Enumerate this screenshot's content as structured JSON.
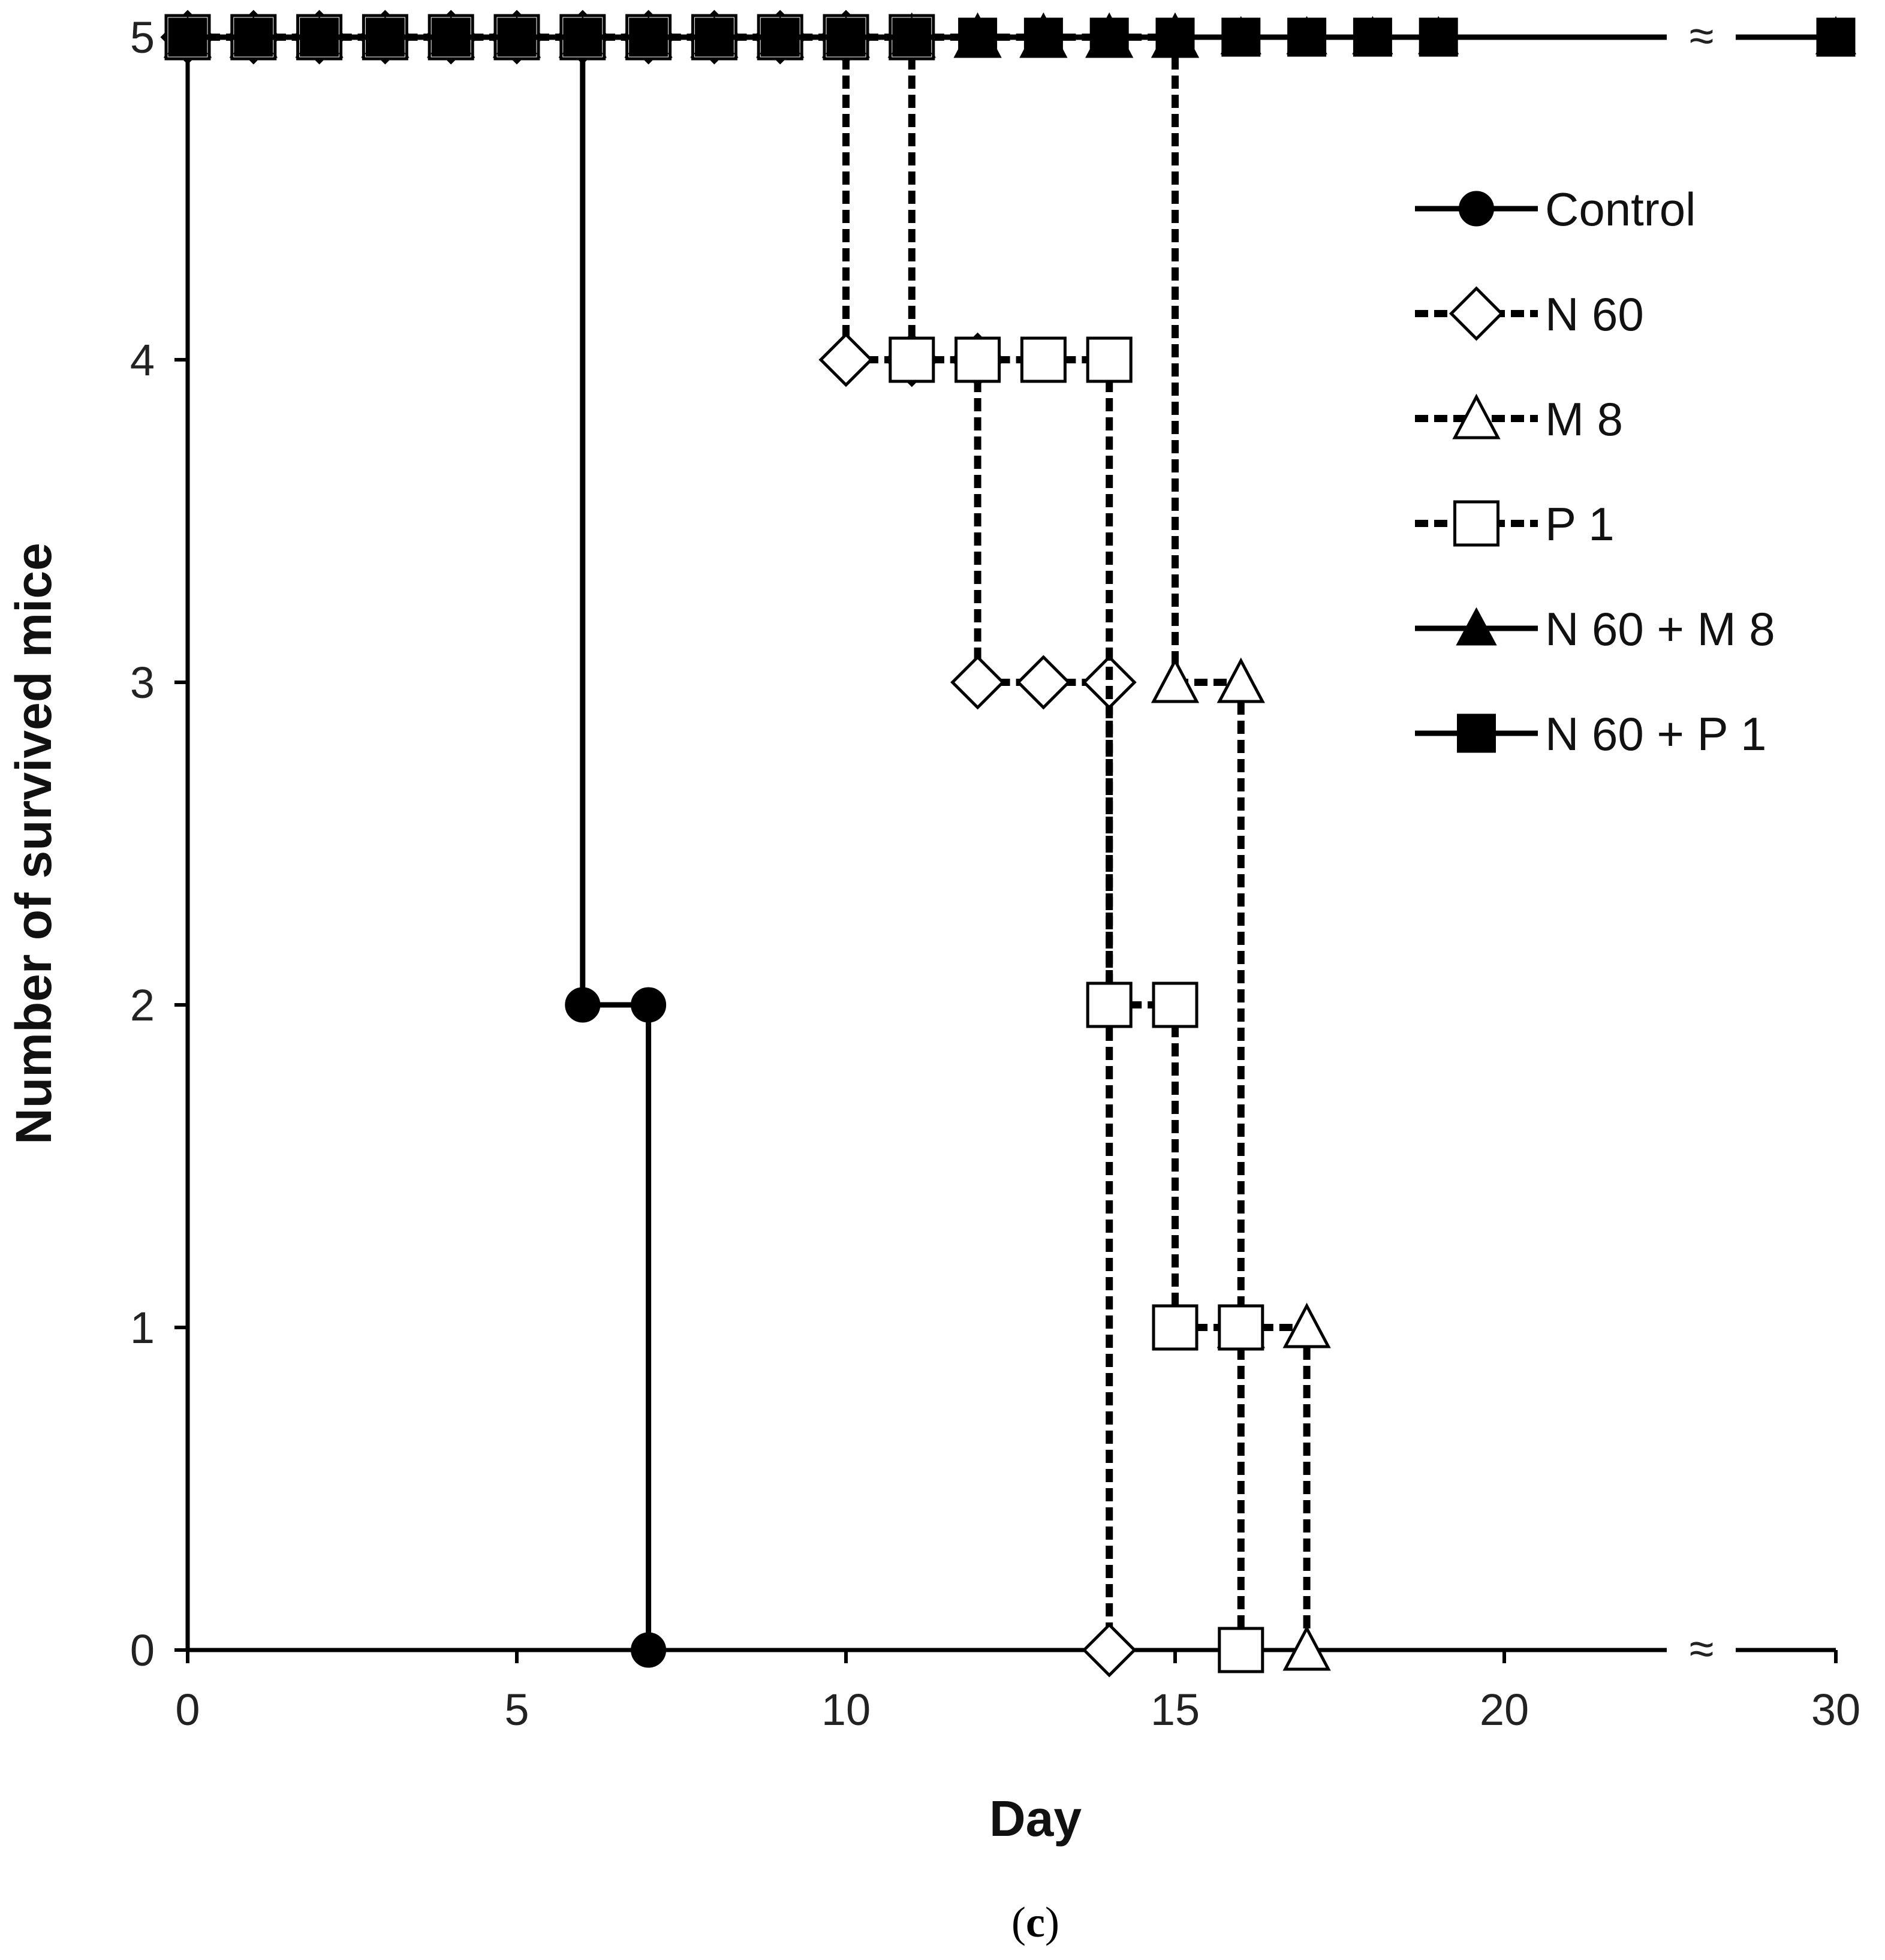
{
  "chart_data": {
    "type": "line",
    "step": true,
    "xlabel": "Day",
    "ylabel": "Number of survived mice",
    "caption_open": "(",
    "caption_letter": "c",
    "caption_close": ")",
    "ylim": [
      0,
      5
    ],
    "yticks": [
      0,
      1,
      2,
      3,
      4,
      5
    ],
    "xticks": [
      0,
      5,
      10,
      15,
      20,
      30
    ],
    "x_axis_break": {
      "from": 20,
      "to": 30,
      "symbol": "≈"
    },
    "series": [
      {
        "name": "Control",
        "line_style": "solid",
        "marker": "circle",
        "marker_fill": "#000000",
        "points": [
          [
            0,
            5
          ],
          [
            1,
            5
          ],
          [
            2,
            5
          ],
          [
            3,
            5
          ],
          [
            4,
            5
          ],
          [
            5,
            5
          ],
          [
            6,
            5
          ],
          [
            6,
            2
          ],
          [
            7,
            2
          ],
          [
            7,
            0
          ]
        ]
      },
      {
        "name": "N 60",
        "line_style": "dashed",
        "marker": "diamond",
        "marker_fill": "#ffffff",
        "points": [
          [
            0,
            5
          ],
          [
            1,
            5
          ],
          [
            2,
            5
          ],
          [
            3,
            5
          ],
          [
            4,
            5
          ],
          [
            5,
            5
          ],
          [
            6,
            5
          ],
          [
            7,
            5
          ],
          [
            8,
            5
          ],
          [
            9,
            5
          ],
          [
            10,
            5
          ],
          [
            10,
            4
          ],
          [
            11,
            4
          ],
          [
            12,
            4
          ],
          [
            12,
            3
          ],
          [
            13,
            3
          ],
          [
            14,
            3
          ],
          [
            14,
            0
          ]
        ]
      },
      {
        "name": "M 8",
        "line_style": "dashed",
        "marker": "triangle",
        "marker_fill": "#ffffff",
        "points": [
          [
            0,
            5
          ],
          [
            1,
            5
          ],
          [
            2,
            5
          ],
          [
            3,
            5
          ],
          [
            4,
            5
          ],
          [
            5,
            5
          ],
          [
            6,
            5
          ],
          [
            7,
            5
          ],
          [
            8,
            5
          ],
          [
            9,
            5
          ],
          [
            10,
            5
          ],
          [
            11,
            5
          ],
          [
            12,
            5
          ],
          [
            13,
            5
          ],
          [
            14,
            5
          ],
          [
            15,
            5
          ],
          [
            15,
            3
          ],
          [
            16,
            3
          ],
          [
            16,
            1
          ],
          [
            17,
            1
          ],
          [
            17,
            0
          ]
        ]
      },
      {
        "name": "P 1",
        "line_style": "dashed",
        "marker": "square",
        "marker_fill": "#ffffff",
        "points": [
          [
            0,
            5
          ],
          [
            1,
            5
          ],
          [
            2,
            5
          ],
          [
            3,
            5
          ],
          [
            4,
            5
          ],
          [
            5,
            5
          ],
          [
            6,
            5
          ],
          [
            7,
            5
          ],
          [
            8,
            5
          ],
          [
            9,
            5
          ],
          [
            10,
            5
          ],
          [
            11,
            5
          ],
          [
            11,
            4
          ],
          [
            12,
            4
          ],
          [
            13,
            4
          ],
          [
            14,
            4
          ],
          [
            14,
            2
          ],
          [
            15,
            2
          ],
          [
            15,
            1
          ],
          [
            16,
            1
          ],
          [
            16,
            0
          ]
        ]
      },
      {
        "name": "N 60 + M 8",
        "line_style": "solid",
        "marker": "triangle",
        "marker_fill": "#000000",
        "points": [
          [
            0,
            5
          ],
          [
            1,
            5
          ],
          [
            2,
            5
          ],
          [
            3,
            5
          ],
          [
            4,
            5
          ],
          [
            5,
            5
          ],
          [
            6,
            5
          ],
          [
            7,
            5
          ],
          [
            8,
            5
          ],
          [
            9,
            5
          ],
          [
            10,
            5
          ],
          [
            11,
            5
          ],
          [
            12,
            5
          ],
          [
            13,
            5
          ],
          [
            14,
            5
          ],
          [
            15,
            5
          ],
          [
            16,
            5
          ],
          [
            17,
            5
          ],
          [
            18,
            5
          ],
          [
            19,
            5
          ],
          [
            30,
            5
          ]
        ]
      },
      {
        "name": "N 60 + P 1",
        "line_style": "solid",
        "marker": "square",
        "marker_fill": "#000000",
        "points": [
          [
            0,
            5
          ],
          [
            1,
            5
          ],
          [
            2,
            5
          ],
          [
            3,
            5
          ],
          [
            4,
            5
          ],
          [
            5,
            5
          ],
          [
            6,
            5
          ],
          [
            7,
            5
          ],
          [
            8,
            5
          ],
          [
            9,
            5
          ],
          [
            10,
            5
          ],
          [
            11,
            5
          ],
          [
            12,
            5
          ],
          [
            13,
            5
          ],
          [
            14,
            5
          ],
          [
            15,
            5
          ],
          [
            16,
            5
          ],
          [
            17,
            5
          ],
          [
            18,
            5
          ],
          [
            19,
            5
          ],
          [
            30,
            5
          ]
        ]
      }
    ],
    "legend_position": "right"
  }
}
